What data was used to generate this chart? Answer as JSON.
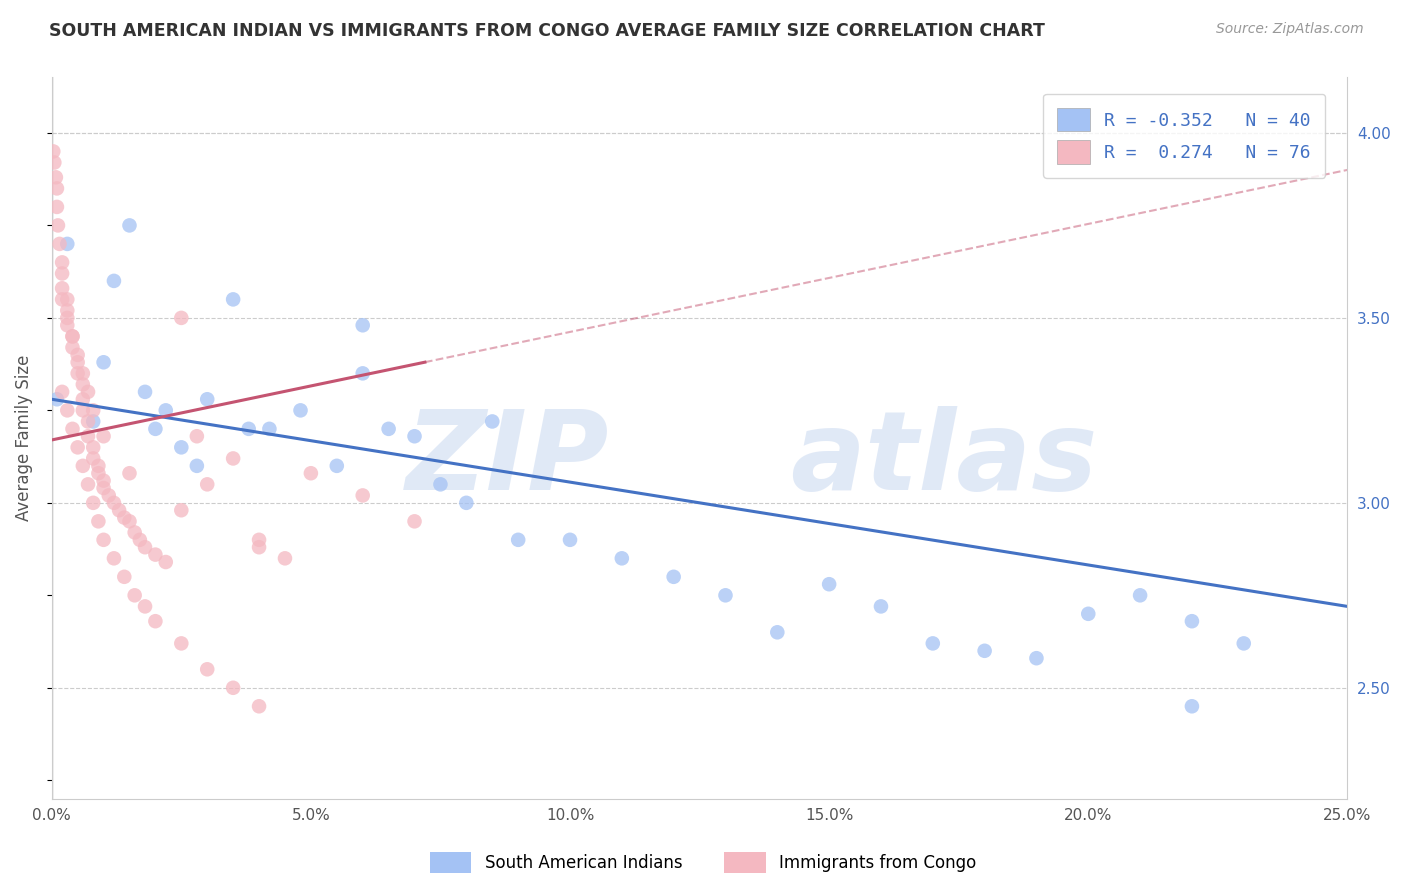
{
  "title": "SOUTH AMERICAN INDIAN VS IMMIGRANTS FROM CONGO AVERAGE FAMILY SIZE CORRELATION CHART",
  "source": "Source: ZipAtlas.com",
  "ylabel": "Average Family Size",
  "yticks_right": [
    2.5,
    3.0,
    3.5,
    4.0
  ],
  "xlim": [
    0.0,
    0.25
  ],
  "ylim": [
    2.2,
    4.15
  ],
  "blue_R": -0.352,
  "blue_N": 40,
  "pink_R": 0.274,
  "pink_N": 76,
  "blue_color": "#a4c2f4",
  "pink_color": "#f4b8c1",
  "blue_line_color": "#4472c4",
  "pink_line_color": "#c45471",
  "legend_blue_label": "South American Indians",
  "legend_pink_label": "Immigrants from Congo",
  "bg_color": "#ffffff",
  "grid_color": "#cccccc",
  "blue_scatter_x": [
    0.001,
    0.003,
    0.008,
    0.01,
    0.012,
    0.015,
    0.018,
    0.02,
    0.022,
    0.025,
    0.028,
    0.03,
    0.035,
    0.038,
    0.042,
    0.048,
    0.055,
    0.06,
    0.065,
    0.07,
    0.075,
    0.08,
    0.09,
    0.1,
    0.11,
    0.12,
    0.13,
    0.14,
    0.15,
    0.16,
    0.17,
    0.18,
    0.19,
    0.2,
    0.21,
    0.22,
    0.23,
    0.06,
    0.085,
    0.22
  ],
  "blue_scatter_y": [
    3.28,
    3.7,
    3.22,
    3.38,
    3.6,
    3.75,
    3.3,
    3.2,
    3.25,
    3.15,
    3.1,
    3.28,
    3.55,
    3.2,
    3.2,
    3.25,
    3.1,
    3.35,
    3.2,
    3.18,
    3.05,
    3.0,
    2.9,
    2.9,
    2.85,
    2.8,
    2.75,
    2.65,
    2.78,
    2.72,
    2.62,
    2.6,
    2.58,
    2.7,
    2.75,
    2.68,
    2.62,
    3.48,
    3.22,
    2.45
  ],
  "pink_scatter_x": [
    0.0003,
    0.0005,
    0.0008,
    0.001,
    0.001,
    0.0012,
    0.0015,
    0.002,
    0.002,
    0.002,
    0.003,
    0.003,
    0.003,
    0.004,
    0.004,
    0.005,
    0.005,
    0.006,
    0.006,
    0.006,
    0.007,
    0.007,
    0.008,
    0.008,
    0.009,
    0.009,
    0.01,
    0.01,
    0.011,
    0.012,
    0.013,
    0.014,
    0.015,
    0.016,
    0.017,
    0.018,
    0.02,
    0.022,
    0.025,
    0.028,
    0.03,
    0.035,
    0.04,
    0.045,
    0.05,
    0.06,
    0.07,
    0.002,
    0.003,
    0.004,
    0.005,
    0.006,
    0.007,
    0.008,
    0.009,
    0.01,
    0.012,
    0.014,
    0.016,
    0.018,
    0.02,
    0.025,
    0.03,
    0.035,
    0.04,
    0.002,
    0.003,
    0.004,
    0.005,
    0.006,
    0.007,
    0.008,
    0.01,
    0.015,
    0.025,
    0.04
  ],
  "pink_scatter_y": [
    3.95,
    3.92,
    3.88,
    3.8,
    3.85,
    3.75,
    3.7,
    3.65,
    3.62,
    3.58,
    3.52,
    3.48,
    3.55,
    3.45,
    3.42,
    3.38,
    3.35,
    3.32,
    3.28,
    3.25,
    3.22,
    3.18,
    3.15,
    3.12,
    3.1,
    3.08,
    3.06,
    3.04,
    3.02,
    3.0,
    2.98,
    2.96,
    2.95,
    2.92,
    2.9,
    2.88,
    2.86,
    2.84,
    3.5,
    3.18,
    3.05,
    3.12,
    2.9,
    2.85,
    3.08,
    3.02,
    2.95,
    3.3,
    3.25,
    3.2,
    3.15,
    3.1,
    3.05,
    3.0,
    2.95,
    2.9,
    2.85,
    2.8,
    2.75,
    2.72,
    2.68,
    2.62,
    2.55,
    2.5,
    2.45,
    3.55,
    3.5,
    3.45,
    3.4,
    3.35,
    3.3,
    3.25,
    3.18,
    3.08,
    2.98,
    2.88
  ]
}
